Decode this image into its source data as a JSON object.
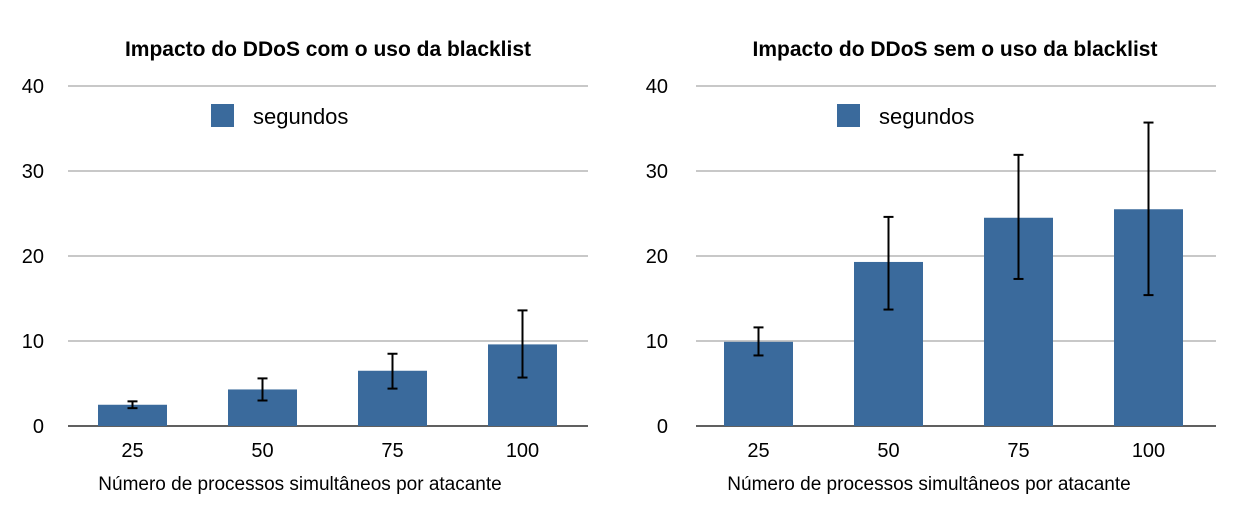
{
  "chart_data": [
    {
      "type": "bar",
      "title": "Impacto do DDoS com o uso da blacklist",
      "xlabel": "Número de processos simultâneos por atacante",
      "ylabel": "",
      "categories": [
        "25",
        "50",
        "75",
        "100"
      ],
      "series": [
        {
          "name": "segundos",
          "values": [
            2.5,
            4.3,
            6.5,
            9.6
          ],
          "error_low": [
            2.1,
            3.0,
            4.4,
            5.7
          ],
          "error_high": [
            2.9,
            5.6,
            8.5,
            13.6
          ],
          "color": "#3a6a9c"
        }
      ],
      "ylim": [
        0,
        40
      ],
      "yticks": [
        0,
        10,
        20,
        30,
        40
      ],
      "grid": true,
      "legend": "top-center"
    },
    {
      "type": "bar",
      "title": "Impacto do DDoS sem o uso da blacklist",
      "xlabel": "Número de processos simultâneos por atacante",
      "ylabel": "",
      "categories": [
        "25",
        "50",
        "75",
        "100"
      ],
      "series": [
        {
          "name": "segundos",
          "values": [
            9.9,
            19.3,
            24.5,
            25.5
          ],
          "error_low": [
            8.3,
            13.7,
            17.3,
            15.4
          ],
          "error_high": [
            11.6,
            24.6,
            31.9,
            35.7
          ],
          "color": "#3a6a9c"
        }
      ],
      "ylim": [
        0,
        40
      ],
      "yticks": [
        0,
        10,
        20,
        30,
        40
      ],
      "grid": true,
      "legend": "top-center"
    }
  ]
}
